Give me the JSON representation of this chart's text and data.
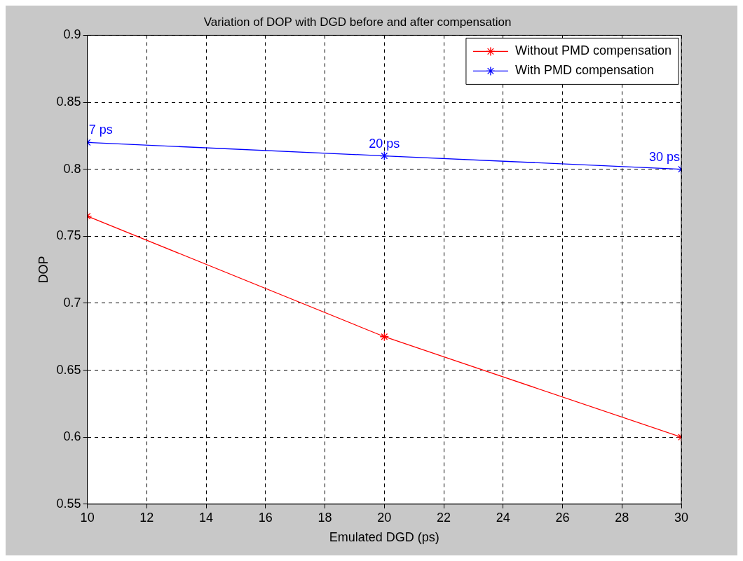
{
  "chart_data": {
    "type": "line",
    "title": "Variation of DOP with DGD before and after compensation",
    "xlabel": "Emulated DGD (ps)",
    "ylabel": "DOP",
    "x": [
      10,
      20,
      30
    ],
    "series": [
      {
        "name": "Without PMD compensation",
        "color": "#ff0000",
        "values": [
          0.765,
          0.675,
          0.6
        ]
      },
      {
        "name": "With PMD compensation",
        "color": "#0000ff",
        "values": [
          0.82,
          0.81,
          0.8
        ]
      }
    ],
    "xlim": [
      10,
      30
    ],
    "xticks": [
      10,
      12,
      14,
      16,
      18,
      20,
      22,
      24,
      26,
      28,
      30
    ],
    "ylim": [
      0.55,
      0.9
    ],
    "yticks": [
      0.55,
      0.6,
      0.65,
      0.7,
      0.75,
      0.8,
      0.85,
      0.9
    ],
    "annotations": [
      {
        "text": "7 ps",
        "x": 10,
        "y": 0.82
      },
      {
        "text": "20 ps",
        "x": 20,
        "y": 0.81
      },
      {
        "text": "30 ps",
        "x": 30,
        "y": 0.8
      }
    ],
    "grid": true,
    "legend": "top right",
    "marker": "cross",
    "line_style": "solid"
  }
}
